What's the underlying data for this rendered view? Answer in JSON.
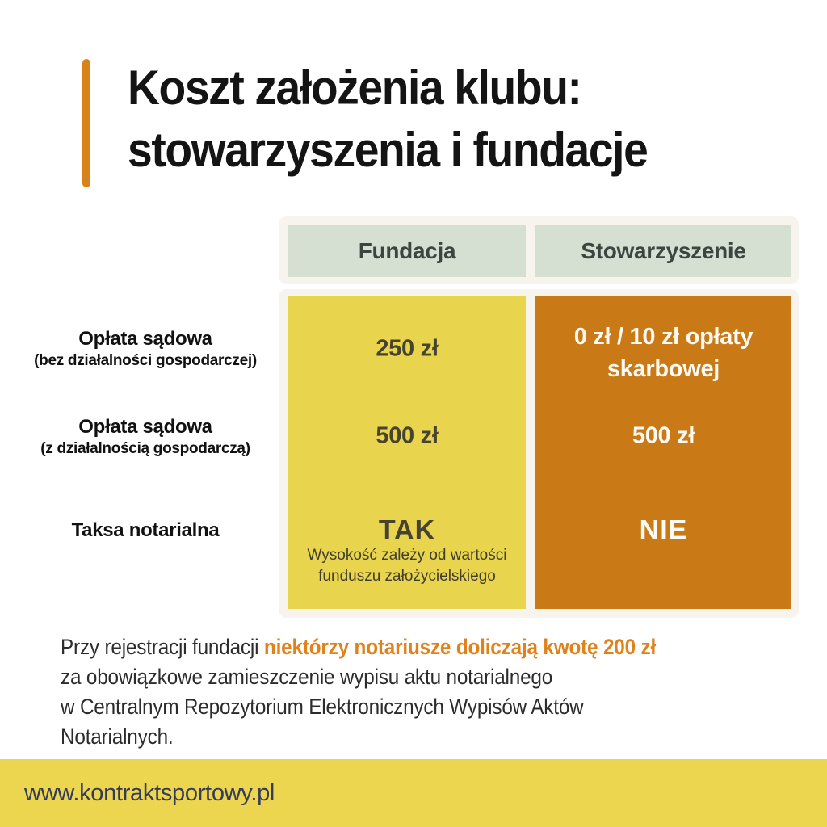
{
  "title": {
    "line1": "Koszt założenia klubu:",
    "line2": "stowarzyszenia i fundacje"
  },
  "table": {
    "columns": [
      {
        "label": "Fundacja"
      },
      {
        "label": "Stowarzyszenie"
      }
    ],
    "rows": [
      {
        "label": "Opłata sądowa",
        "sublabel": "(bez działalności gospodarczej)",
        "fundacja": "250 zł",
        "stowarzyszenie": "0 zł / 10 zł opłaty skarbowej"
      },
      {
        "label": "Opłata sądowa",
        "sublabel": "(z działalnością gospodarczą)",
        "fundacja": "500 zł",
        "stowarzyszenie": "500 zł"
      },
      {
        "label": "Taksa notarialna",
        "sublabel": "",
        "fundacja": "TAK",
        "fundacja_note": "Wysokość zależy od wartości funduszu założycielskiego",
        "stowarzyszenie": "NIE"
      }
    ]
  },
  "note": {
    "line1_normal": "Przy rejestracji fundacji ",
    "line1_highlight": "niektórzy notariusze doliczają kwotę 200 zł",
    "line2": "za obowiązkowe zamieszczenie wypisu aktu notarialnego",
    "line3": "w Centralnym Repozytorium Elektronicznych Wypisów Aktów",
    "line4": "Notarialnych."
  },
  "footer": {
    "url": "www.kontraktsportowy.pl"
  },
  "colors": {
    "accent_orange_bar": "#d9821c",
    "highlight_orange_text": "#e0811c",
    "cell_yellow": "#e9d44e",
    "cell_orange": "#c97a17",
    "header_green": "#d6e0d2",
    "frame_cream": "#f7f3ed",
    "footer_yellow": "#ecd64f",
    "footer_text_navy": "#343b58",
    "title_black": "#141414"
  }
}
